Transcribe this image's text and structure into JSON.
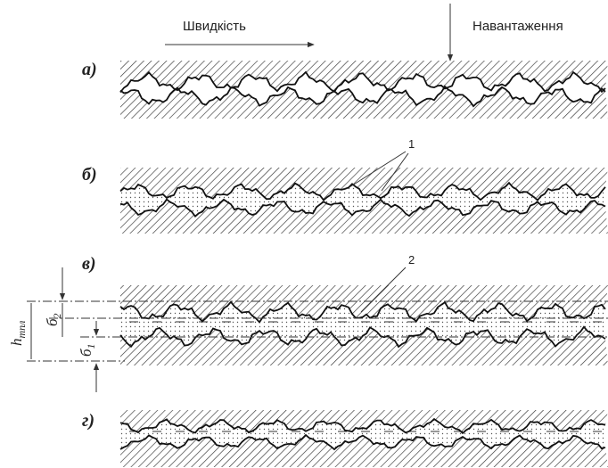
{
  "header": {
    "speed": "Швидкість",
    "load": "Навантаження"
  },
  "panels": [
    {
      "label": "а)"
    },
    {
      "label": "б)"
    },
    {
      "label": "в)"
    },
    {
      "label": "г)"
    }
  ],
  "callouts": [
    "1",
    "2"
  ],
  "dimensions": {
    "h": {
      "base": "h",
      "sub": "тпл"
    },
    "d2": {
      "base": "б",
      "sub": "2"
    },
    "d1": {
      "base": "б",
      "sub": "1"
    }
  }
}
